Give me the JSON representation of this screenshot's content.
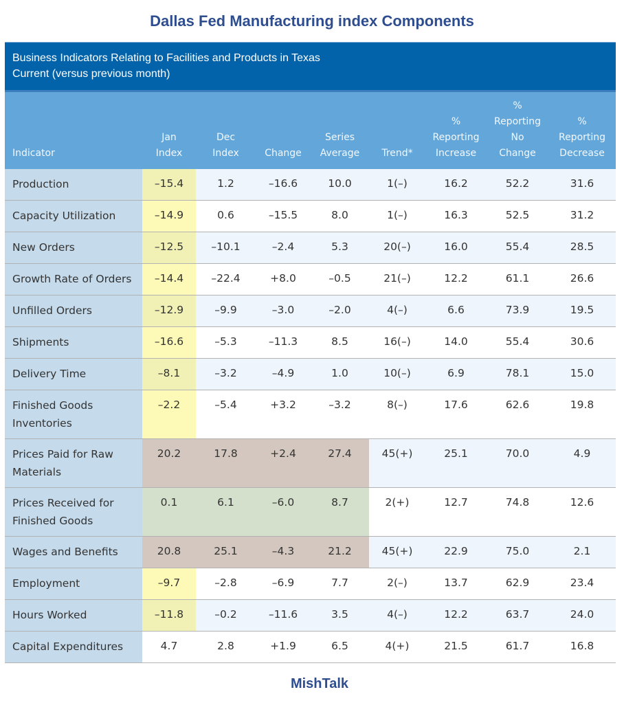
{
  "title": "Dallas Fed Manufacturing index Components",
  "caption": {
    "line1": "Business Indicators Relating to Facilities and Products in Texas",
    "line2": "Current (versus previous month)"
  },
  "headers": [
    [
      "Indicator"
    ],
    [
      "Jan",
      "Index"
    ],
    [
      "Dec",
      "Index"
    ],
    [
      "Change"
    ],
    [
      "Series",
      "Average"
    ],
    [
      "Trend*"
    ],
    [
      "%",
      "Reporting",
      "Increase"
    ],
    [
      "%",
      "Reporting",
      "No",
      "Change"
    ],
    [
      "%",
      "Reporting",
      "Decrease"
    ]
  ],
  "rows": [
    {
      "indicator": [
        "Production"
      ],
      "values": [
        "–15.4",
        "1.2",
        "–16.6",
        "10.0",
        "1(–)",
        "16.2",
        "52.2",
        "31.6"
      ],
      "highlight": "yellow",
      "span": 1
    },
    {
      "indicator": [
        "Capacity Utilization"
      ],
      "values": [
        "–14.9",
        "0.6",
        "–15.5",
        "8.0",
        "1(–)",
        "16.3",
        "52.5",
        "31.2"
      ],
      "highlight": "yellow",
      "span": 1
    },
    {
      "indicator": [
        "New Orders"
      ],
      "values": [
        "–12.5",
        "–10.1",
        "–2.4",
        "5.3",
        "20(–)",
        "16.0",
        "55.4",
        "28.5"
      ],
      "highlight": "yellow",
      "span": 1
    },
    {
      "indicator": [
        "Growth Rate of Orders"
      ],
      "values": [
        "–14.4",
        "–22.4",
        "+8.0",
        "–0.5",
        "21(–)",
        "12.2",
        "61.1",
        "26.6"
      ],
      "highlight": "yellow",
      "span": 1
    },
    {
      "indicator": [
        "Unfilled Orders"
      ],
      "values": [
        "–12.9",
        "–9.9",
        "–3.0",
        "–2.0",
        "4(–)",
        "6.6",
        "73.9",
        "19.5"
      ],
      "highlight": "yellow",
      "span": 1
    },
    {
      "indicator": [
        "Shipments"
      ],
      "values": [
        "–16.6",
        "–5.3",
        "–11.3",
        "8.5",
        "16(–)",
        "14.0",
        "55.4",
        "30.6"
      ],
      "highlight": "yellow",
      "span": 1
    },
    {
      "indicator": [
        "Delivery Time"
      ],
      "values": [
        "–8.1",
        "–3.2",
        "–4.9",
        "1.0",
        "10(–)",
        "6.9",
        "78.1",
        "15.0"
      ],
      "highlight": "yellow",
      "span": 1
    },
    {
      "indicator": [
        "Finished Goods",
        "Inventories"
      ],
      "values": [
        "–2.2",
        "–5.4",
        "+3.2",
        "–3.2",
        "8(–)",
        "17.6",
        "62.6",
        "19.8"
      ],
      "highlight": "yellow",
      "span": 1
    },
    {
      "indicator": [
        "Prices Paid for Raw",
        "Materials"
      ],
      "values": [
        "20.2",
        "17.8",
        "+2.4",
        "27.4",
        "45(+)",
        "25.1",
        "70.0",
        "4.9"
      ],
      "highlight": "brown",
      "span": 4
    },
    {
      "indicator": [
        "Prices Received for",
        "Finished Goods"
      ],
      "values": [
        "0.1",
        "6.1",
        "–6.0",
        "8.7",
        "2(+)",
        "12.7",
        "74.8",
        "12.6"
      ],
      "highlight": "green",
      "span": 4
    },
    {
      "indicator": [
        "Wages and Benefits"
      ],
      "values": [
        "20.8",
        "25.1",
        "–4.3",
        "21.2",
        "45(+)",
        "22.9",
        "75.0",
        "2.1"
      ],
      "highlight": "brown",
      "span": 4
    },
    {
      "indicator": [
        "Employment"
      ],
      "values": [
        "–9.7",
        "–2.8",
        "–6.9",
        "7.7",
        "2(–)",
        "13.7",
        "62.9",
        "23.4"
      ],
      "highlight": "yellow",
      "span": 1
    },
    {
      "indicator": [
        "Hours Worked"
      ],
      "values": [
        "–11.8",
        "–0.2",
        "–11.6",
        "3.5",
        "4(–)",
        "12.2",
        "63.7",
        "24.0"
      ],
      "highlight": "yellow",
      "span": 1
    },
    {
      "indicator": [
        "Capital Expenditures"
      ],
      "values": [
        "4.7",
        "2.8",
        "+1.9",
        "6.5",
        "4(+)",
        "21.5",
        "61.7",
        "16.8"
      ],
      "highlight": "none",
      "span": 0
    }
  ],
  "footer": "MishTalk"
}
